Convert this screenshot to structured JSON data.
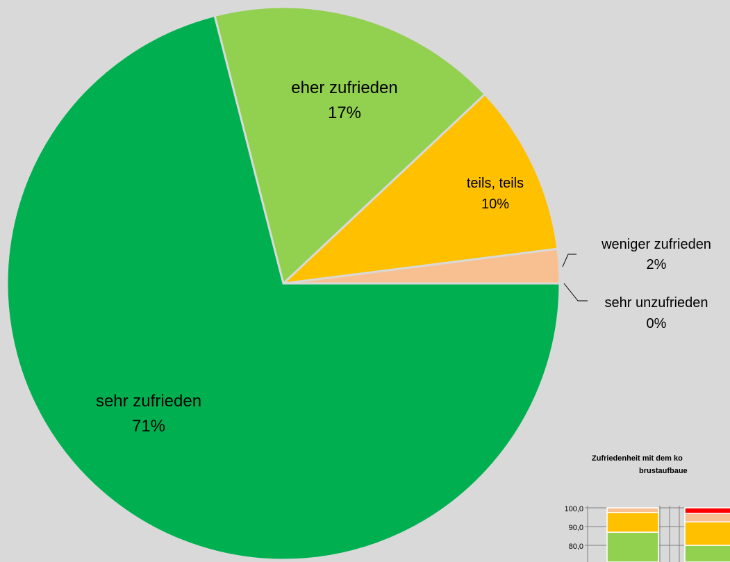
{
  "chart_data": [
    {
      "type": "pie",
      "slices": [
        {
          "label": "sehr zufrieden",
          "value": 71,
          "pct_label": "71%",
          "color": "#00b050"
        },
        {
          "label": "eher zufrieden",
          "value": 17,
          "pct_label": "17%",
          "color": "#92d050"
        },
        {
          "label": "teils, teils",
          "value": 10,
          "pct_label": "10%",
          "color": "#ffc000"
        },
        {
          "label": "weniger zufrieden",
          "value": 2,
          "pct_label": "2%",
          "color": "#f8c090"
        },
        {
          "label": "sehr unzufrieden",
          "value": 0,
          "pct_label": "0%",
          "color": "#ff0000"
        }
      ]
    },
    {
      "type": "bar",
      "stacked": true,
      "title_line1": "Zufriedenheit mit dem ko",
      "title_line2": "brustaufbaue",
      "y_ticks": [
        "100,0",
        "90,0",
        "80,0"
      ],
      "ylim": [
        0,
        100
      ],
      "series": [
        {
          "name": "sehr zufrieden",
          "color": "#00b050",
          "values": [
            null,
            null
          ]
        },
        {
          "name": "eher zufrieden",
          "color": "#92d050",
          "values": [
            87,
            80
          ]
        },
        {
          "name": "teils, teils",
          "color": "#ffc000",
          "values": [
            10.5,
            12.5
          ]
        },
        {
          "name": "weniger zufrieden",
          "color": "#f8c090",
          "values": [
            2.5,
            4.5
          ]
        },
        {
          "name": "sehr unzufrieden",
          "color": "#ff0000",
          "values": [
            0,
            3
          ]
        }
      ]
    }
  ]
}
